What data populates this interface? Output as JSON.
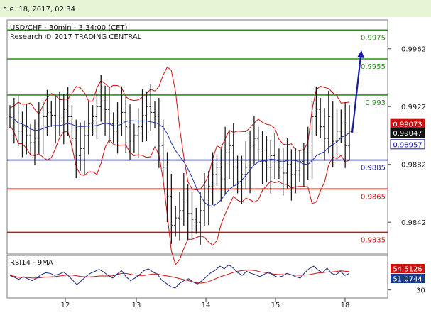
{
  "header": {
    "date": "ธ.ค. 18, 2017, 02:34"
  },
  "chart_data": {
    "type": "line",
    "title": "USD/CHF - 30min - 3:34:00 (CET)",
    "subtitle": "Research © 2017 TRADING CENTRAL",
    "ylim": [
      0.982,
      0.9982
    ],
    "y_ticks": [
      {
        "value": 0.9962,
        "label": "0.9962"
      },
      {
        "value": 0.9922,
        "label": "0.9922"
      },
      {
        "value": 0.9882,
        "label": "0.9882"
      },
      {
        "value": 0.9842,
        "label": "0.9842"
      }
    ],
    "x_ticks": [
      "12",
      "13",
      "14",
      "15",
      "18"
    ],
    "levels": [
      {
        "value": 0.9975,
        "label": "0.9975",
        "color": "#2e8b1e"
      },
      {
        "value": 0.9955,
        "label": "0.9955",
        "color": "#2e8b1e"
      },
      {
        "value": 0.993,
        "label": "0.993",
        "color": "#2e8b1e"
      },
      {
        "value": 0.9885,
        "label": "0.9885",
        "color": "#1a1aa8"
      },
      {
        "value": 0.9865,
        "label": "0.9865",
        "color": "#cc1111"
      },
      {
        "value": 0.9835,
        "label": "0.9835",
        "color": "#cc1111"
      }
    ],
    "price_tags": [
      {
        "value": 0.99073,
        "label": "0.99073",
        "bg": "#cc1111",
        "fg": "#ffffff"
      },
      {
        "value": 0.99047,
        "label": "0.99047",
        "bg": "#111111",
        "fg": "#ffffff"
      },
      {
        "value": 0.98957,
        "label": "0.98957",
        "bg": "#ffffff",
        "fg": "#1a1aa8"
      }
    ],
    "forecast_arrow": {
      "from": 0.9904,
      "to": 0.996
    },
    "close_series": [
      0.9915,
      0.9912,
      0.9905,
      0.9908,
      0.9902,
      0.9897,
      0.99,
      0.9907,
      0.9915,
      0.9918,
      0.9916,
      0.9912,
      0.9914,
      0.992,
      0.9915,
      0.99,
      0.9888,
      0.9893,
      0.9902,
      0.991,
      0.9915,
      0.9922,
      0.9926,
      0.992,
      0.991,
      0.9905,
      0.9912,
      0.9918,
      0.9908,
      0.9898,
      0.9902,
      0.9908,
      0.9916,
      0.9922,
      0.9918,
      0.9915,
      0.9895,
      0.988,
      0.986,
      0.984,
      0.9845,
      0.985,
      0.9858,
      0.9848,
      0.9844,
      0.9842,
      0.985,
      0.9858,
      0.9867,
      0.9875,
      0.988,
      0.9872,
      0.989,
      0.9895,
      0.988,
      0.987,
      0.9875,
      0.988,
      0.9895,
      0.99,
      0.9892,
      0.9884,
      0.988,
      0.9888,
      0.9885,
      0.988,
      0.9876,
      0.9882,
      0.9875,
      0.9878,
      0.9884,
      0.9882,
      0.989,
      0.9915,
      0.992,
      0.9908,
      0.99,
      0.9915,
      0.9898,
      0.9905,
      0.9912,
      0.9895,
      0.9905
    ],
    "rsi": {
      "title": "RSI14 - 9MA",
      "y_tick": "30",
      "tags": [
        {
          "label": "54.5126",
          "bg": "#cc1111",
          "fg": "#ffffff"
        },
        {
          "label": "51.0744",
          "bg": "#1a3a8a",
          "fg": "#ffffff"
        }
      ],
      "values": [
        52,
        49,
        46,
        50,
        47,
        44,
        48,
        53,
        56,
        55,
        52,
        54,
        57,
        52,
        45,
        38,
        44,
        50,
        55,
        58,
        61,
        57,
        52,
        48,
        54,
        59,
        50,
        44,
        48,
        53,
        59,
        62,
        57,
        54,
        45,
        40,
        35,
        33,
        40,
        44,
        47,
        42,
        39,
        44,
        50,
        56,
        60,
        66,
        62,
        68,
        63,
        56,
        52,
        58,
        55,
        53,
        50,
        54,
        57,
        52,
        49,
        51,
        55,
        53,
        50,
        48,
        56,
        62,
        66,
        60,
        56,
        63,
        55,
        53,
        58,
        52,
        55
      ]
    }
  }
}
